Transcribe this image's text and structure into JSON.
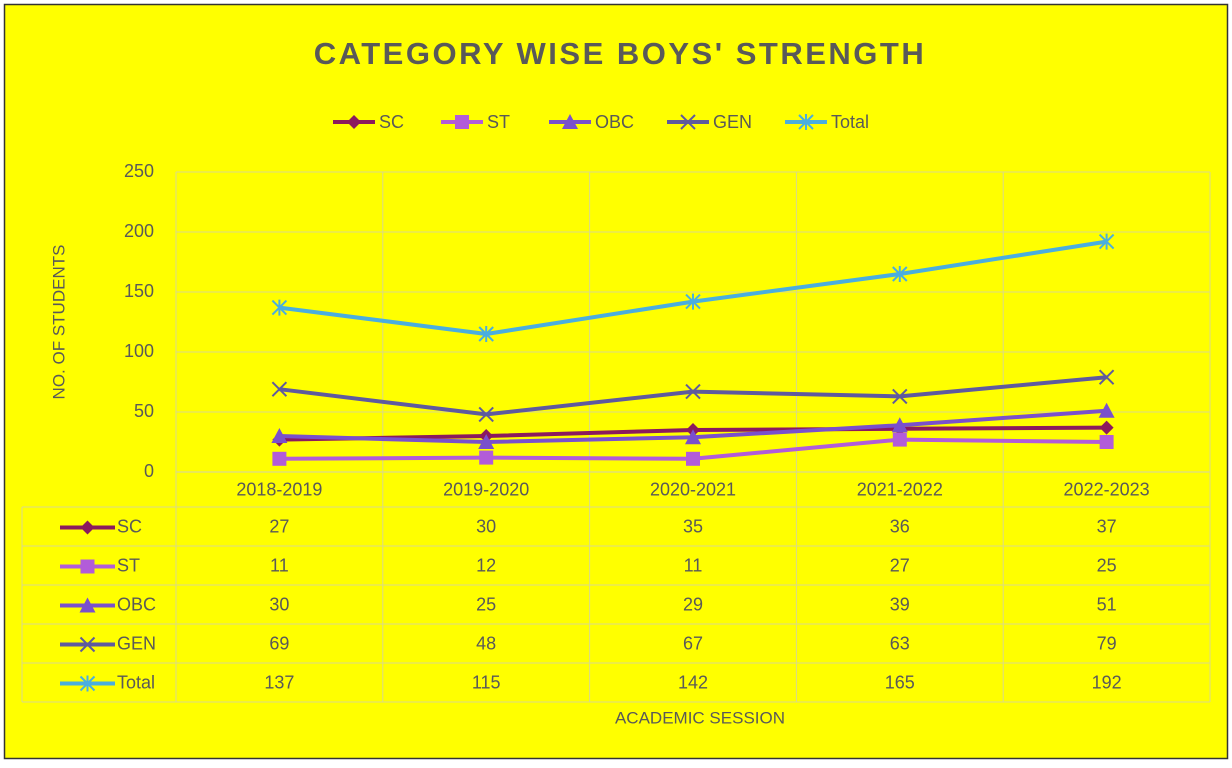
{
  "chart_data": {
    "type": "line",
    "title": "CATEGORY WISE BOYS' STRENGTH",
    "x_label": "ACADEMIC SESSION",
    "y_label": "NO. OF STUDENTS",
    "categories": [
      "2018-2019",
      "2019-2020",
      "2020-2021",
      "2021-2022",
      "2022-2023"
    ],
    "series": [
      {
        "name": "SC",
        "color": "#8b1a5e",
        "marker": "diamond",
        "values": [
          27,
          30,
          35,
          36,
          37
        ]
      },
      {
        "name": "ST",
        "color": "#b25cd9",
        "marker": "square",
        "values": [
          11,
          12,
          11,
          27,
          25
        ]
      },
      {
        "name": "OBC",
        "color": "#7a50cc",
        "marker": "triangle",
        "values": [
          30,
          25,
          29,
          39,
          51
        ]
      },
      {
        "name": "GEN",
        "color": "#5f5a9e",
        "marker": "x",
        "values": [
          69,
          48,
          67,
          63,
          79
        ]
      },
      {
        "name": "Total",
        "color": "#4aaedf",
        "marker": "star",
        "values": [
          137,
          115,
          142,
          165,
          192
        ]
      }
    ],
    "ylim": [
      0,
      250
    ],
    "yticks": [
      0,
      50,
      100,
      150,
      200,
      250
    ],
    "grid": true,
    "legend": "top",
    "data_table": true
  }
}
